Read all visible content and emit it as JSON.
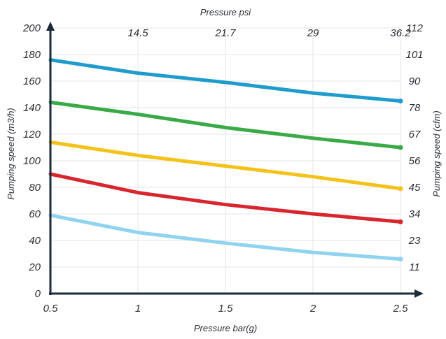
{
  "chart_data": {
    "type": "line",
    "xlabel": "Pressure bar(g)",
    "x2label": "Pressure psi",
    "ylabel": "Pumping speed (m3/h)",
    "y2label": "Pumping speed (cfm)",
    "xlim": [
      0.5,
      2.5
    ],
    "ylim": [
      0,
      200
    ],
    "x_ticks": [
      "0.5",
      "1",
      "1.5",
      "2",
      "2.5"
    ],
    "x_tick_values": [
      0.5,
      1,
      1.5,
      2,
      2.5
    ],
    "x2_ticks": [
      "14.5",
      "21.7",
      "29",
      "36.2"
    ],
    "x2_tick_values": [
      1,
      1.5,
      2,
      2.5
    ],
    "y_ticks": [
      "0",
      "20",
      "40",
      "60",
      "80",
      "100",
      "120",
      "140",
      "160",
      "180",
      "200"
    ],
    "y_tick_values": [
      0,
      20,
      40,
      60,
      80,
      100,
      120,
      140,
      160,
      180,
      200
    ],
    "y2_ticks": [
      "11",
      "23",
      "34",
      "45",
      "56",
      "67",
      "78",
      "90",
      "101",
      "112"
    ],
    "y2_tick_values": [
      20,
      40,
      60,
      80,
      100,
      120,
      140,
      160,
      180,
      200
    ],
    "grid": true,
    "series": [
      {
        "color": "#1f9bcc",
        "x": [
          0.5,
          1,
          1.5,
          2,
          2.5
        ],
        "y": [
          176,
          166,
          159,
          151,
          145
        ]
      },
      {
        "color": "#3aaa46",
        "x": [
          0.5,
          1,
          1.5,
          2,
          2.5
        ],
        "y": [
          144,
          135,
          125,
          117,
          110
        ]
      },
      {
        "color": "#f5c21b",
        "x": [
          0.5,
          1,
          1.5,
          2,
          2.5
        ],
        "y": [
          114,
          104,
          96,
          88,
          79
        ]
      },
      {
        "color": "#d7262e",
        "x": [
          0.5,
          1,
          1.5,
          2,
          2.5
        ],
        "y": [
          90,
          76,
          67,
          60,
          54
        ]
      },
      {
        "color": "#8fd3ee",
        "x": [
          0.5,
          1,
          1.5,
          2,
          2.5
        ],
        "y": [
          59,
          46,
          38,
          31,
          26
        ]
      }
    ]
  }
}
